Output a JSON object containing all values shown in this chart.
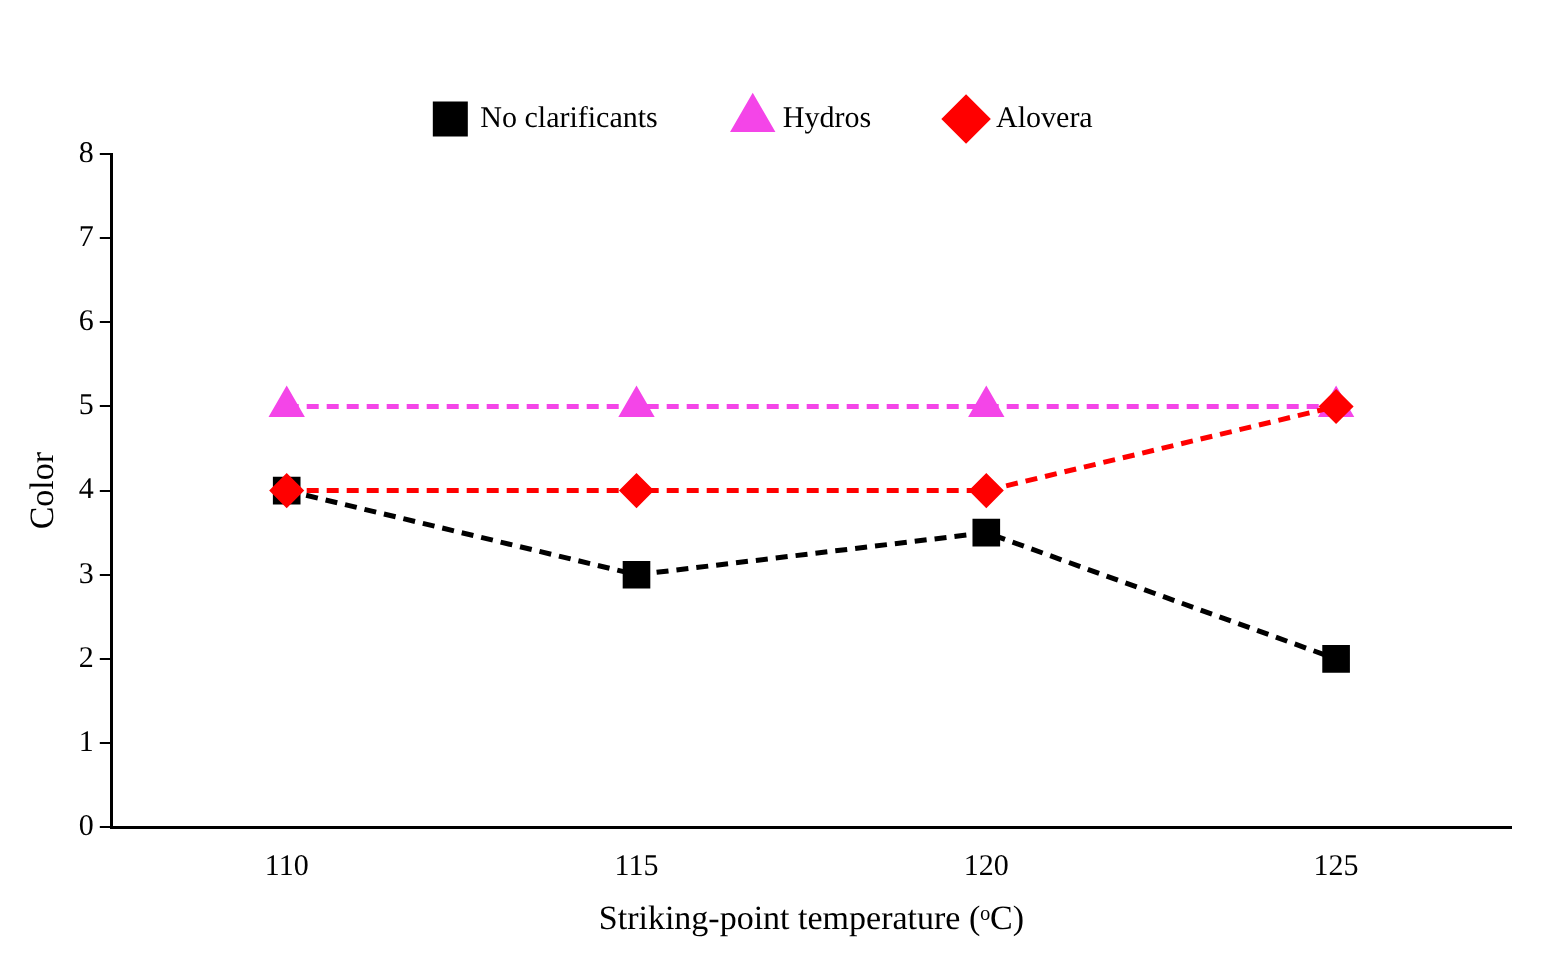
{
  "chart_data": {
    "type": "line",
    "xlabel": "Striking-point temperature (ᵒC)",
    "ylabel": "Color",
    "categories": [
      "110",
      "115",
      "120",
      "125"
    ],
    "series": [
      {
        "name": "No clarificants",
        "color": "#000000",
        "values": [
          4,
          3,
          3.5,
          2
        ],
        "marker": "square"
      },
      {
        "name": "Hydros",
        "color": "#f445e8",
        "values": [
          5,
          5,
          5,
          5
        ],
        "marker": "triangle"
      },
      {
        "name": "Alovera",
        "color": "#ff0000",
        "values": [
          4,
          4,
          4,
          5
        ],
        "marker": "diamond"
      }
    ],
    "ylim": [
      0,
      8
    ],
    "yticks": [
      0,
      1,
      2,
      3,
      4,
      5,
      6,
      7,
      8
    ],
    "grid": false,
    "legend": "top",
    "line_style": "dashed"
  }
}
